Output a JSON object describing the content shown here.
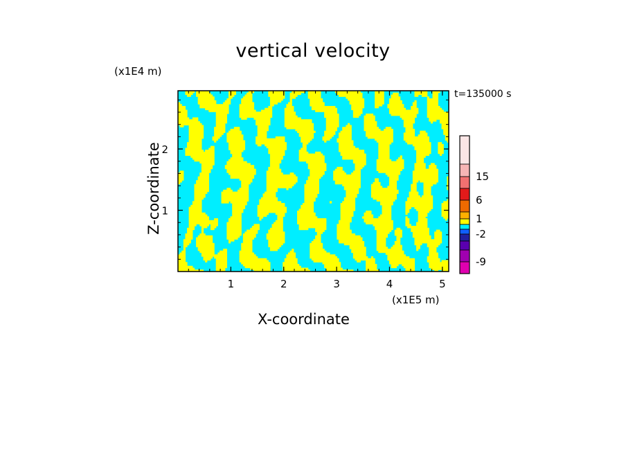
{
  "chart_data": {
    "type": "heatmap",
    "title": "vertical velocity",
    "xlabel": "X-coordinate",
    "ylabel": "Z-coordinate",
    "x_unit": "(x1E5 m)",
    "y_unit": "(x1E4 m)",
    "time_label": "t=135000 s",
    "x_ticks": [
      1,
      2,
      3,
      4,
      5
    ],
    "y_ticks": [
      1,
      2
    ],
    "xlim": [
      0,
      5.12
    ],
    "ylim": [
      0,
      2.95
    ],
    "grid": false,
    "field_colors": {
      "positive": "#ffff00",
      "negative": "#00eeff"
    },
    "colorbar": {
      "labels": [
        "15",
        "6",
        "1",
        "-2",
        "-9"
      ],
      "label_values": [
        15,
        6,
        1,
        -2,
        -9
      ],
      "levels_top_to_bottom": [
        {
          "color": "#fce6e6"
        },
        {
          "color": "#f7b5b5"
        },
        {
          "color": "#f27070"
        },
        {
          "color": "#e31a1a"
        },
        {
          "color": "#ee6a00"
        },
        {
          "color": "#ffb000"
        },
        {
          "color": "#ffff00"
        },
        {
          "color": "#00eeff"
        },
        {
          "color": "#1060ff"
        },
        {
          "color": "#2020a0"
        },
        {
          "color": "#5a00b0"
        },
        {
          "color": "#a000b0"
        },
        {
          "color": "#e000b0"
        }
      ]
    }
  }
}
